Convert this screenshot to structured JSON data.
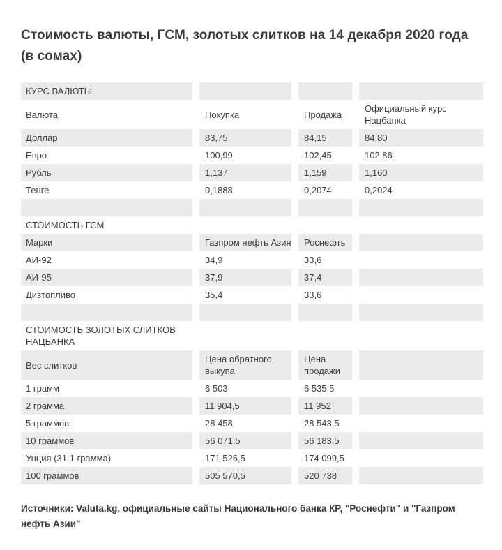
{
  "header": {
    "title": "Стоимость валюты, ГСМ, золотых слитков на 14 декабря 2020 года (в сомах)"
  },
  "footer": {
    "source_note": "Источники: Valuta.kg, официальные сайты Национального банка КР, \"Роснефти\" и \"Газпром нефть Азии\""
  },
  "colors": {
    "background": "#ffffff",
    "row_stripe": "#ebebeb",
    "text": "#3e3e3e",
    "title_text": "#3a3a3a"
  },
  "chart_data": [
    {
      "type": "table",
      "title": "КУРС ВАЛЮТЫ",
      "columns": [
        "Валюта",
        "Покупка",
        "Продажа",
        "Официальный курс Нацбанка"
      ],
      "rows": [
        [
          "Доллар",
          "83,75",
          "84,15",
          "84,80"
        ],
        [
          "Евро",
          "100,99",
          "102,45",
          "102,86"
        ],
        [
          "Рубль",
          "1,137",
          "1,159",
          "1,160"
        ],
        [
          "Тенге",
          "0,1888",
          "0,2074",
          "0,2024"
        ]
      ]
    },
    {
      "type": "table",
      "title": "СТОИМОСТЬ ГСМ",
      "columns": [
        "Марки",
        "Газпром нефть Азия",
        "Роснефть",
        ""
      ],
      "rows": [
        [
          "АИ-92",
          "34,9",
          "33,6",
          ""
        ],
        [
          "АИ-95",
          "37,9",
          "37,4",
          ""
        ],
        [
          "Дизтопливо",
          "35,4",
          "33,6",
          ""
        ]
      ]
    },
    {
      "type": "table",
      "title": "СТОИМОСТЬ ЗОЛОТЫХ СЛИТКОВ НАЦБАНКА",
      "columns": [
        "Вес слитков",
        "Цена обратного выкупа",
        "Цена продажи",
        ""
      ],
      "rows": [
        [
          "1 грамм",
          "6 503",
          "6 535,5",
          ""
        ],
        [
          "2 грамма",
          "11 904,5",
          "11 952",
          ""
        ],
        [
          "5 граммов",
          "28 458",
          "28 543,5",
          ""
        ],
        [
          "10 граммов",
          "56 071,5",
          "56 183,5",
          ""
        ],
        [
          "Унция (31.1 грамма)",
          "171 526,5",
          "174 099,5",
          ""
        ],
        [
          "100 граммов",
          "505 570,5",
          "520 738",
          ""
        ]
      ]
    }
  ]
}
